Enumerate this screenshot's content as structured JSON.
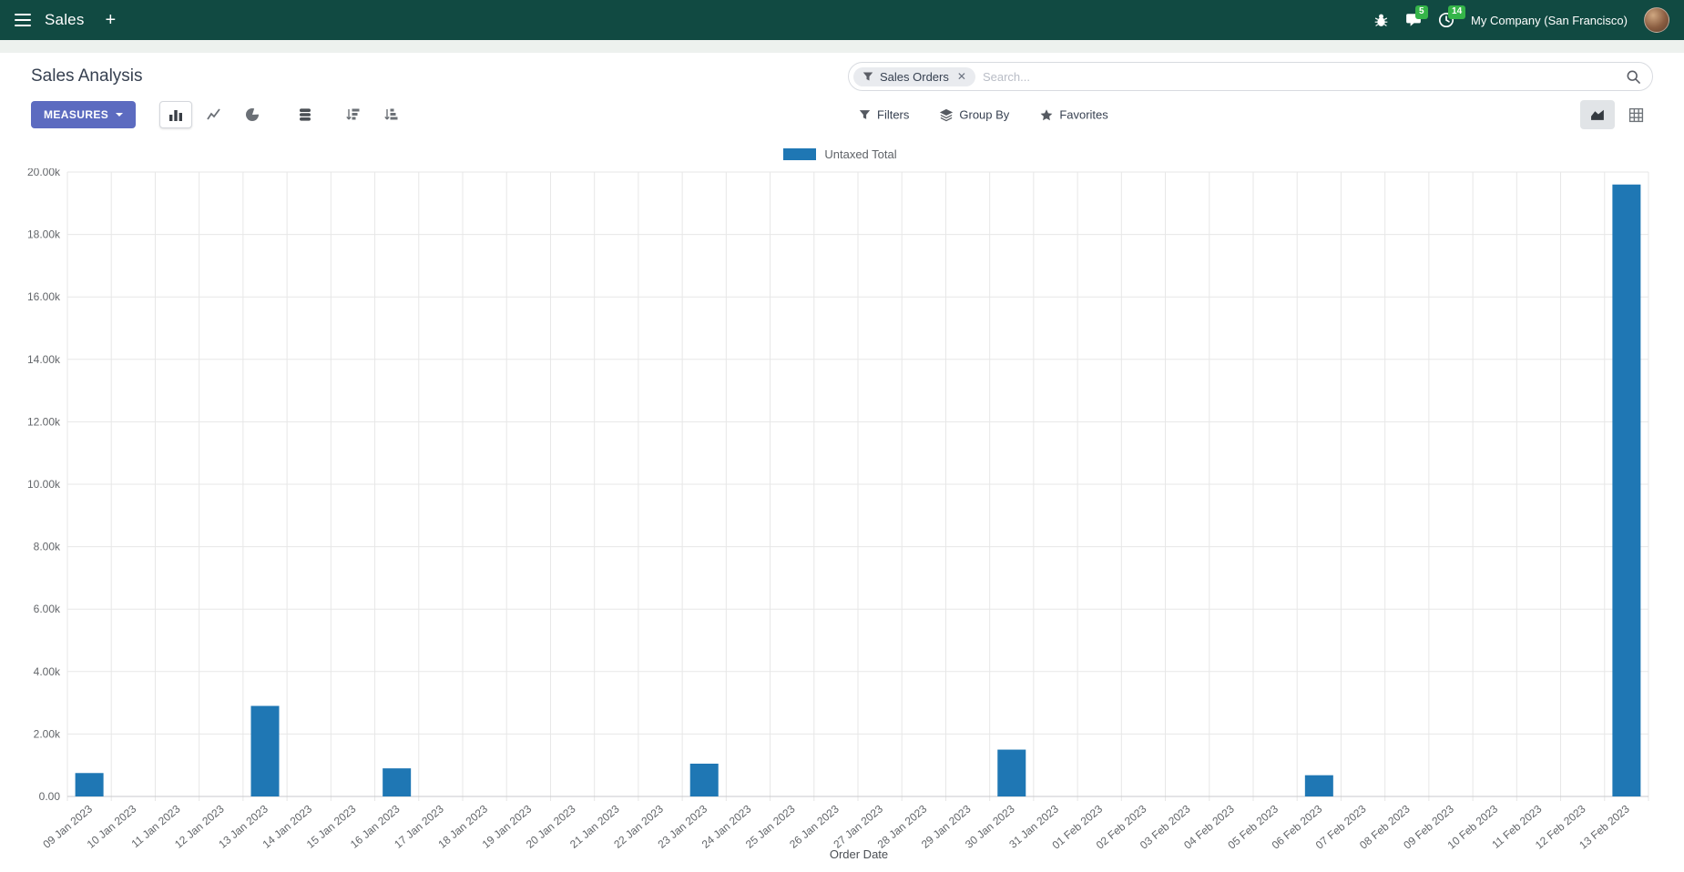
{
  "top_bar": {
    "app_title": "Sales",
    "company": "My Company (San Francisco)",
    "message_badge": "5",
    "activity_badge": "14"
  },
  "control_panel": {
    "title": "Sales Analysis",
    "search": {
      "facet": "Sales Orders",
      "placeholder": "Search..."
    },
    "measures_label": "Measures",
    "filters_label": "Filters",
    "group_by_label": "Group By",
    "favorites_label": "Favorites"
  },
  "icons": {
    "menu": "hamburger",
    "new": "+",
    "bug": "bug",
    "messages": "speech-bubble",
    "activities": "clock",
    "facet_filter": "funnel",
    "facet_remove": "✕",
    "search": "magnifier",
    "bar_chart": "bars",
    "line_chart": "line",
    "pie_chart": "pie",
    "stacked": "database",
    "sort_desc": "sort-amount-desc",
    "sort_asc": "sort-amount-asc",
    "filters": "funnel",
    "group_by": "layers",
    "favorites": "star",
    "graph_view": "area-chart",
    "pivot_view": "grid"
  },
  "colors": {
    "topbar": "#114a42",
    "primary_button": "#5c6bc0",
    "badge": "#35b549",
    "bar": "#1f77b4"
  },
  "chart_data": {
    "type": "bar",
    "title": "",
    "legend": [
      "Untaxed Total"
    ],
    "series_color": "#1f77b4",
    "xlabel": "Order Date",
    "ylabel": "",
    "ylim": [
      0,
      20000
    ],
    "y_tick_step": 2000,
    "y_tick_labels": [
      "0.00",
      "2.00k",
      "4.00k",
      "6.00k",
      "8.00k",
      "10.00k",
      "12.00k",
      "14.00k",
      "16.00k",
      "18.00k",
      "20.00k"
    ],
    "grid": true,
    "legend_position": "top",
    "categories": [
      "09 Jan 2023",
      "10 Jan 2023",
      "11 Jan 2023",
      "12 Jan 2023",
      "13 Jan 2023",
      "14 Jan 2023",
      "15 Jan 2023",
      "16 Jan 2023",
      "17 Jan 2023",
      "18 Jan 2023",
      "19 Jan 2023",
      "20 Jan 2023",
      "21 Jan 2023",
      "22 Jan 2023",
      "23 Jan 2023",
      "24 Jan 2023",
      "25 Jan 2023",
      "26 Jan 2023",
      "27 Jan 2023",
      "28 Jan 2023",
      "29 Jan 2023",
      "30 Jan 2023",
      "31 Jan 2023",
      "01 Feb 2023",
      "02 Feb 2023",
      "03 Feb 2023",
      "04 Feb 2023",
      "05 Feb 2023",
      "06 Feb 2023",
      "07 Feb 2023",
      "08 Feb 2023",
      "09 Feb 2023",
      "10 Feb 2023",
      "11 Feb 2023",
      "12 Feb 2023",
      "13 Feb 2023"
    ],
    "values": [
      750,
      0,
      0,
      0,
      2900,
      0,
      0,
      900,
      0,
      0,
      0,
      0,
      0,
      0,
      1050,
      0,
      0,
      0,
      0,
      0,
      0,
      1500,
      0,
      0,
      0,
      0,
      0,
      0,
      680,
      0,
      0,
      0,
      0,
      0,
      0,
      19600
    ]
  }
}
